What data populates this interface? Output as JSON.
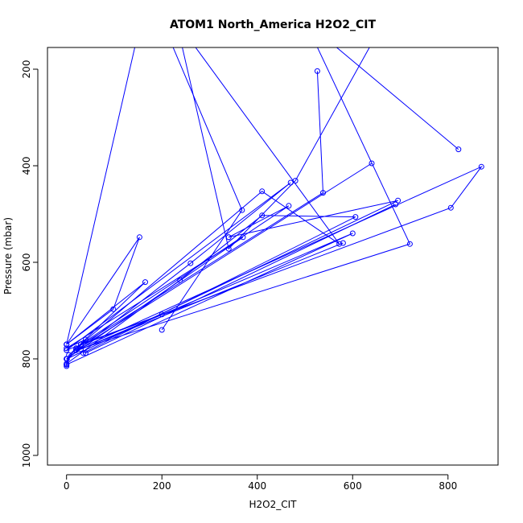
{
  "chart_data": {
    "type": "line",
    "title": "ATOM1 North_America H2O2_CIT",
    "xlabel": "H2O2_CIT",
    "ylabel": "Pressure (mbar)",
    "xlim": [
      -40,
      905
    ],
    "ylim": [
      1020,
      155
    ],
    "x_ticks": [
      0,
      200,
      400,
      600,
      800
    ],
    "y_ticks": [
      200,
      400,
      600,
      800,
      1000
    ],
    "grid": false,
    "legend": "none",
    "color": "#0000ff",
    "series": [
      {
        "x": [
          156,
          0,
          153,
          98,
          0
        ],
        "y": [
          100,
          770,
          548,
          697,
          770
        ]
      },
      {
        "x": [
          0,
          165,
          5,
          0,
          0,
          238,
          410,
          606,
          35
        ],
        "y": [
          770,
          641,
          792,
          815,
          810,
          637,
          503,
          506,
          788
        ]
      },
      {
        "x": [
          340,
          695,
          1,
          0
        ],
        "y": [
          548,
          472,
          800,
          812
        ]
      },
      {
        "x": [
          526,
          538,
          20,
          410,
          572,
          230,
          340,
          480,
          700
        ],
        "y": [
          204,
          456,
          778,
          453,
          562,
          100,
          572,
          431,
          40
        ]
      },
      {
        "x": [
          340,
          466,
          30,
          200,
          30
        ],
        "y": [
          548,
          483,
          770,
          708,
          770
        ]
      },
      {
        "x": [
          20,
          720,
          500,
          822
        ],
        "y": [
          782,
          562,
          100,
          366
        ]
      },
      {
        "x": [
          20,
          640,
          20,
          870,
          806,
          0
        ],
        "y": [
          782,
          395,
          782,
          402,
          487,
          782
        ]
      },
      {
        "x": [
          200,
          368,
          200
        ],
        "y": [
          100,
          492,
          740
        ]
      },
      {
        "x": [
          0,
          370,
          0,
          40,
          0,
          260,
          470,
          0
        ],
        "y": [
          800,
          548,
          778,
          760,
          800,
          602,
          435,
          782
        ]
      },
      {
        "x": [
          40,
          690
        ],
        "y": [
          788,
          480
        ]
      },
      {
        "x": [
          0,
          600,
          30,
          580
        ],
        "y": [
          812,
          540,
          780,
          560
        ]
      }
    ]
  }
}
